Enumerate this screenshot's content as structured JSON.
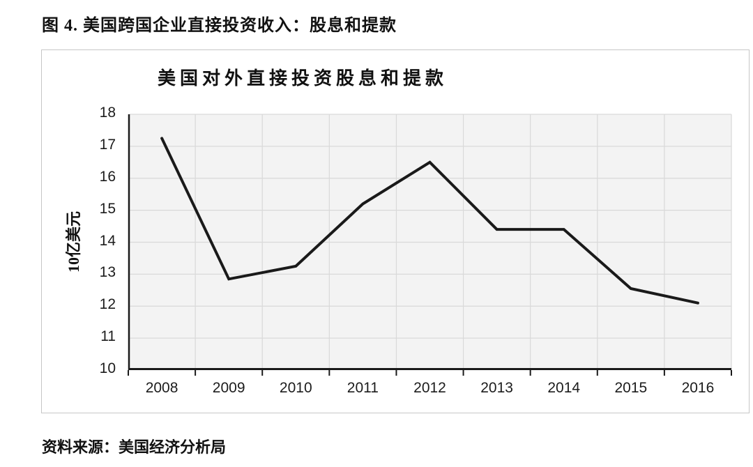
{
  "figure": {
    "caption": "图 4. 美国跨国企业直接投资收入：股息和提款",
    "source": "资料来源：美国经济分析局"
  },
  "chart_data": {
    "type": "line",
    "title": "美国对外直接投资股息和提款",
    "xlabel": "",
    "ylabel": "10亿美元",
    "categories": [
      "2008",
      "2009",
      "2010",
      "2011",
      "2012",
      "2013",
      "2014",
      "2015",
      "2016"
    ],
    "series": [
      {
        "name": "美国对外直接投资股息和提款",
        "values": [
          17.25,
          12.85,
          13.25,
          15.2,
          16.5,
          14.4,
          14.4,
          12.55,
          12.1
        ]
      }
    ],
    "ylim": [
      10,
      18
    ],
    "yticks": [
      10,
      11,
      12,
      13,
      14,
      15,
      16,
      17,
      18
    ],
    "grid": true,
    "legend_position": "none",
    "line_color": "#1a1a1a",
    "plot_bg": "#f3f3f3",
    "grid_color": "#d9d9d9",
    "axis_color": "#1a1a1a"
  }
}
